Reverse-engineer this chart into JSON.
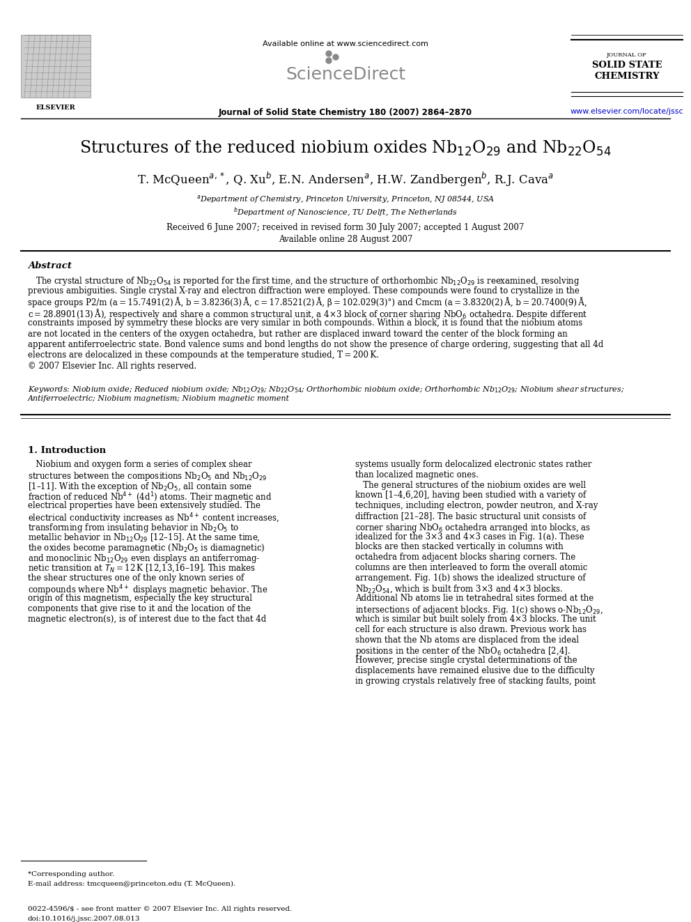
{
  "bg_color": "#ffffff",
  "title": "Structures of the reduced niobium oxides Nb$_{12}$O$_{29}$ and Nb$_{22}$O$_{54}$",
  "authors": "T. McQueen$^{a,*}$, Q. Xu$^{b}$, E.N. Andersen$^{a}$, H.W. Zandbergen$^{b}$, R.J. Cava$^{a}$",
  "affil1": "$^{a}$Department of Chemistry, Princeton University, Princeton, NJ 08544, USA",
  "affil2": "$^{b}$Department of Nanoscience, TU Delft, The Netherlands",
  "dates": "Received 6 June 2007; received in revised form 30 July 2007; accepted 1 August 2007",
  "online": "Available online 28 August 2007",
  "journal_header": "Journal of Solid State Chemistry 180 (2007) 2864–2870",
  "available_online": "Available online at www.sciencedirect.com",
  "journal_name_top": "JOURNAL OF\nSOLID STATE\nCHEMISTRY",
  "elsevier_url": "www.elsevier.com/locate/jssc",
  "abstract_title": "Abstract",
  "abstract_text": "The crystal structure of Nb$_{22}$O$_{54}$ is reported for the first time, and the structure of orthorhombic Nb$_{12}$O$_{29}$ is reexamined, resolving previous ambiguities. Single crystal X-ray and electron diffraction were employed. These compounds were found to crystallize in the space groups P2/m (a = 15.7491(2) Å, b = 3.8236(3) Å, c = 17.8521(2) Å, β = 102.029(3)°) and Cmcm (a = 3.8320(2) Å, b = 20.7400(9) Å, c = 28.8901(13) Å), respectively and share a common structural unit, a 4×3 block of corner sharing NbO$_6$ octahedra. Despite different constraints imposed by symmetry these blocks are very similar in both compounds. Within a block, it is found that the niobium atoms are not located in the centers of the oxygen octahedra, but rather are displaced inward toward the center of the block forming an apparent antiferroelectric state. Bond valence sums and bond lengths do not show the presence of charge ordering, suggesting that all 4d electrons are delocalized in these compounds at the temperature studied, T = 200 K.\n© 2007 Elsevier Inc. All rights reserved.",
  "keywords_text": "Keywords: Niobium oxide; Reduced niobium oxide; Nb$_{12}$O$_{29}$; Nb$_{22}$O$_{54}$; Orthorhombic niobium oxide; Orthorhombic Nb$_{12}$O$_{29}$; Niobium shear structures; Antiferroelectric; Niobium magnetism; Niobium magnetic moment",
  "section1_title": "1. Introduction",
  "col1_text": "Niobium and oxygen form a series of complex shear structures between the compositions Nb$_2$O$_5$ and Nb$_{12}$O$_{29}$ [1–11]. With the exception of Nb$_2$O$_5$, all contain some fraction of reduced Nb$^{4+}$ (4d$^1$) atoms. Their magnetic and electrical properties have been extensively studied. The electrical conductivity increases as Nb$^{4+}$ content increases, transforming from insulating behavior in Nb$_2$O$_5$ to metallic behavior in Nb$_{12}$O$_{29}$ [12–15]. At the same time, the oxides become paramagnetic (Nb$_2$O$_5$ is diamagnetic) and monoclinic Nb$_{12}$O$_{29}$ even displays an antiferromagnetic transition at $T_N$ = 12 K [12,13,16–19]. This makes the shear structures one of the only known series of compounds where Nb$^{4+}$ displays magnetic behavior. The origin of this magnetism, especially the key structural components that give rise to it and the location of the magnetic electron(s), is of interest due to the fact that 4d",
  "col2_text": "systems usually form delocalized electronic states rather than localized magnetic ones.\n    The general structures of the niobium oxides are well known [1–4,6,20], having been studied with a variety of techniques, including electron, powder neutron, and X-ray diffraction [21–28]. The basic structural unit consists of corner sharing NbO$_6$ octahedra arranged into blocks, as idealized for the 3×3 and 4×3 cases in Fig. 1(a). These blocks are then stacked vertically in columns with octahedra from adjacent blocks sharing corners. The columns are then interleaved to form the overall atomic arrangement. Fig. 1(b) shows the idealized structure of Nb$_{22}$O$_{54}$, which is built from 3×3 and 4×3 blocks. Additional Nb atoms lie in tetrahedral sites formed at the intersections of adjacent blocks. Fig. 1(c) shows o-Nb$_{12}$O$_{29}$, which is similar but built solely from 4×3 blocks. The unit cell for each structure is also drawn. Previous work has shown that the Nb atoms are displaced from the ideal positions in the center of the NbO$_6$ octahedra [2,4]. However, precise single crystal determinations of the displacements have remained elusive due to the difficulty in growing crystals relatively free of stacking faults, point",
  "footnote1": "*Corresponding author.",
  "footnote2": "E-mail address: tmcqueen@princeton.edu (T. McQueen).",
  "footer1": "0022-4596/$ - see front matter © 2007 Elsevier Inc. All rights reserved.",
  "footer2": "doi:10.1016/j.jssc.2007.08.013"
}
